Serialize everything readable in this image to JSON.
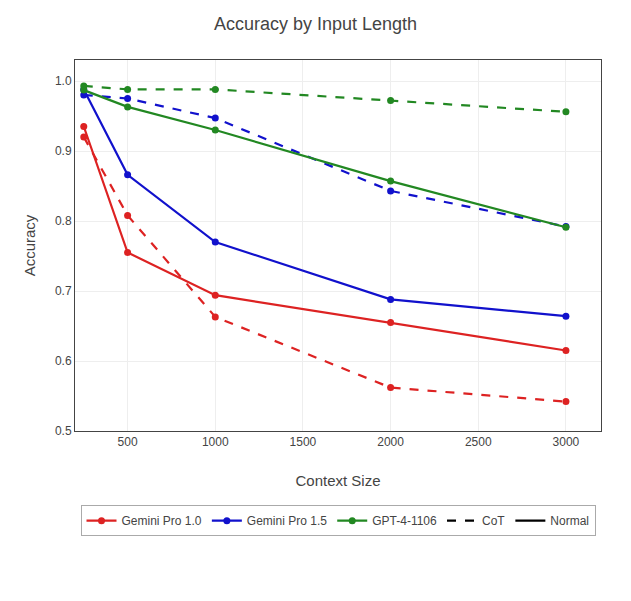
{
  "chart_data": {
    "type": "line",
    "title": "Accuracy by Input Length",
    "x_label": "Context Size",
    "y_label": "Accuracy",
    "x": [
      250,
      500,
      1000,
      2000,
      3000
    ],
    "series": [
      {
        "name": "Gemini Pro 1.0",
        "color": "#dd2222",
        "line_style": "solid",
        "marker": "circle",
        "values": [
          0.935,
          0.755,
          0.694,
          0.655,
          0.615
        ]
      },
      {
        "name": "Gemini Pro 1.0",
        "color": "#dd2222",
        "line_style": "dashed",
        "marker": "circle",
        "values": [
          0.92,
          0.808,
          0.663,
          0.562,
          0.542
        ]
      },
      {
        "name": "Gemini Pro 1.5",
        "color": "#1111cc",
        "line_style": "solid",
        "marker": "circle",
        "values": [
          0.988,
          0.866,
          0.77,
          0.688,
          0.664
        ]
      },
      {
        "name": "Gemini Pro 1.5",
        "color": "#1111cc",
        "line_style": "dashed",
        "marker": "circle",
        "values": [
          0.98,
          0.975,
          0.947,
          0.843,
          0.792
        ]
      },
      {
        "name": "GPT-4-1106",
        "color": "#228822",
        "line_style": "solid",
        "marker": "circle",
        "values": [
          0.987,
          0.963,
          0.93,
          0.857,
          0.791
        ]
      },
      {
        "name": "GPT-4-1106",
        "color": "#228822",
        "line_style": "dashed",
        "marker": "circle",
        "values": [
          0.993,
          0.988,
          0.988,
          0.972,
          0.956
        ]
      }
    ],
    "line_styles": [
      {
        "name": "CoT",
        "line_style": "dashed"
      },
      {
        "name": "Normal",
        "line_style": "solid"
      }
    ],
    "xlim": [
      200,
      3200
    ],
    "xticks": [
      500,
      1000,
      1500,
      2000,
      2500,
      3000
    ],
    "ylim": [
      0.5,
      1.03
    ],
    "yticks": [
      0.5,
      0.6,
      0.7,
      0.8,
      0.9,
      {
        "value": 1.0,
        "label": "1.0"
      }
    ],
    "grid": true,
    "legend": "bottom"
  }
}
